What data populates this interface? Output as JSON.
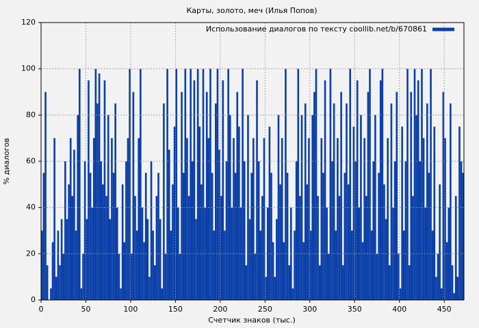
{
  "chart_data": {
    "type": "bar",
    "title": "Карты, золото, меч (Илья Попов)",
    "x_label": "Счетчик знаков (тыс.)",
    "y_label": "% диалогов",
    "legend_position": "upper right",
    "grid": true,
    "xlim": [
      0,
      472
    ],
    "ylim": [
      0,
      120
    ],
    "xticks": [
      0,
      50,
      100,
      150,
      200,
      250,
      300,
      350,
      400,
      450
    ],
    "yticks": [
      0,
      20,
      40,
      60,
      80,
      100,
      120
    ],
    "x": [
      0,
      2,
      4,
      6,
      8,
      10,
      12,
      14,
      16,
      18,
      20,
      22,
      24,
      26,
      28,
      30,
      32,
      34,
      36,
      38,
      40,
      42,
      44,
      46,
      48,
      50,
      52,
      54,
      56,
      58,
      60,
      62,
      64,
      66,
      68,
      70,
      72,
      74,
      76,
      78,
      80,
      82,
      84,
      86,
      88,
      90,
      92,
      94,
      96,
      98,
      100,
      102,
      104,
      106,
      108,
      110,
      112,
      114,
      116,
      118,
      120,
      122,
      124,
      126,
      128,
      130,
      132,
      134,
      136,
      138,
      140,
      142,
      144,
      146,
      148,
      150,
      152,
      154,
      156,
      158,
      160,
      162,
      164,
      166,
      168,
      170,
      172,
      174,
      176,
      178,
      180,
      182,
      184,
      186,
      188,
      190,
      192,
      194,
      196,
      198,
      200,
      202,
      204,
      206,
      208,
      210,
      212,
      214,
      216,
      218,
      220,
      222,
      224,
      226,
      228,
      230,
      232,
      234,
      236,
      238,
      240,
      242,
      244,
      246,
      248,
      250,
      252,
      254,
      256,
      258,
      260,
      262,
      264,
      266,
      268,
      270,
      272,
      274,
      276,
      278,
      280,
      282,
      284,
      286,
      288,
      290,
      292,
      294,
      296,
      298,
      300,
      302,
      304,
      306,
      308,
      310,
      312,
      314,
      316,
      318,
      320,
      322,
      324,
      326,
      328,
      330,
      332,
      334,
      336,
      338,
      340,
      342,
      344,
      346,
      348,
      350,
      352,
      354,
      356,
      358,
      360,
      362,
      364,
      366,
      368,
      370,
      372,
      374,
      376,
      378,
      380,
      382,
      384,
      386,
      388,
      390,
      392,
      394,
      396,
      398,
      400,
      402,
      404,
      406,
      408,
      410,
      412,
      414,
      416,
      418,
      420,
      422,
      424,
      426,
      428,
      430,
      432,
      434,
      436,
      438,
      440,
      442,
      444,
      446,
      448,
      450,
      452,
      454,
      456,
      458,
      460,
      462,
      464,
      466,
      468,
      470
    ],
    "series": [
      {
        "name": "Использование диалогов по тексту coollib.net/b/670861",
        "color": "#0a3fa8",
        "values": [
          30,
          55,
          90,
          15,
          0,
          5,
          25,
          70,
          10,
          30,
          15,
          35,
          20,
          60,
          35,
          50,
          70,
          45,
          65,
          30,
          80,
          100,
          5,
          20,
          60,
          35,
          95,
          55,
          40,
          70,
          100,
          85,
          98,
          60,
          50,
          95,
          45,
          80,
          35,
          70,
          55,
          85,
          40,
          20,
          5,
          50,
          25,
          60,
          70,
          100,
          20,
          90,
          45,
          30,
          70,
          100,
          40,
          25,
          55,
          35,
          10,
          60,
          30,
          15,
          45,
          55,
          35,
          5,
          85,
          20,
          100,
          65,
          30,
          50,
          75,
          100,
          40,
          20,
          90,
          55,
          100,
          70,
          45,
          100,
          60,
          95,
          35,
          100,
          75,
          50,
          100,
          40,
          90,
          70,
          100,
          55,
          30,
          85,
          100,
          65,
          45,
          95,
          30,
          60,
          100,
          80,
          40,
          70,
          55,
          90,
          75,
          40,
          100,
          60,
          15,
          80,
          35,
          55,
          70,
          20,
          95,
          60,
          30,
          45,
          70,
          10,
          40,
          75,
          55,
          25,
          10,
          35,
          80,
          50,
          70,
          25,
          100,
          55,
          15,
          40,
          5,
          30,
          60,
          100,
          45,
          80,
          25,
          85,
          50,
          70,
          30,
          80,
          90,
          100,
          45,
          15,
          70,
          55,
          95,
          40,
          20,
          100,
          60,
          85,
          30,
          70,
          45,
          90,
          15,
          55,
          85,
          50,
          100,
          30,
          75,
          60,
          95,
          40,
          80,
          25,
          70,
          45,
          90,
          100,
          30,
          60,
          80,
          20,
          55,
          95,
          100,
          50,
          35,
          70,
          15,
          85,
          40,
          60,
          90,
          20,
          5,
          75,
          30,
          60,
          100,
          15,
          90,
          45,
          100,
          80,
          95,
          60,
          100,
          70,
          40,
          85,
          55,
          100,
          30,
          75,
          10,
          20,
          50,
          5,
          90,
          70,
          25,
          40,
          85,
          15,
          3,
          45,
          10,
          75,
          60,
          55
        ]
      }
    ]
  }
}
